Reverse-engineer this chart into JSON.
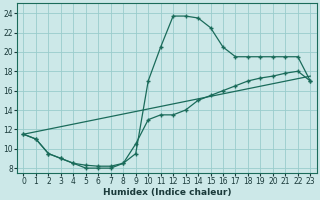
{
  "xlabel": "Humidex (Indice chaleur)",
  "background_color": "#cce8e8",
  "grid_color": "#99cccc",
  "line_color": "#1a6b5a",
  "xlim": [
    -0.5,
    23.5
  ],
  "ylim": [
    7.5,
    25.0
  ],
  "xticks": [
    0,
    1,
    2,
    3,
    4,
    5,
    6,
    7,
    8,
    9,
    10,
    11,
    12,
    13,
    14,
    15,
    16,
    17,
    18,
    19,
    20,
    21,
    22,
    23
  ],
  "yticks": [
    8,
    10,
    12,
    14,
    16,
    18,
    20,
    22,
    24
  ],
  "curve1_x": [
    0,
    1,
    2,
    3,
    4,
    5,
    6,
    7,
    8,
    9,
    10,
    11,
    12,
    13,
    14,
    15,
    16,
    17,
    18,
    19,
    20,
    21,
    22,
    23
  ],
  "curve1_y": [
    11.5,
    11.0,
    9.5,
    9.0,
    8.5,
    8.0,
    8.0,
    8.0,
    8.5,
    9.5,
    17.0,
    20.5,
    23.7,
    23.7,
    23.5,
    22.5,
    20.5,
    19.5,
    19.5,
    19.5,
    19.5,
    19.5,
    19.5,
    17.0
  ],
  "curve2_x": [
    0,
    1,
    2,
    3,
    4,
    5,
    6,
    7,
    8,
    9,
    10,
    11,
    12,
    13,
    14,
    15,
    16,
    17,
    18,
    19,
    20,
    21,
    22,
    23
  ],
  "curve2_y": [
    11.5,
    11.0,
    9.5,
    9.0,
    8.5,
    8.3,
    8.2,
    8.2,
    8.5,
    10.5,
    13.0,
    13.5,
    13.5,
    14.0,
    15.0,
    15.5,
    16.0,
    16.5,
    17.0,
    17.3,
    17.5,
    17.8,
    18.0,
    17.0
  ],
  "curve3_x": [
    0,
    23
  ],
  "curve3_y": [
    11.5,
    17.5
  ]
}
